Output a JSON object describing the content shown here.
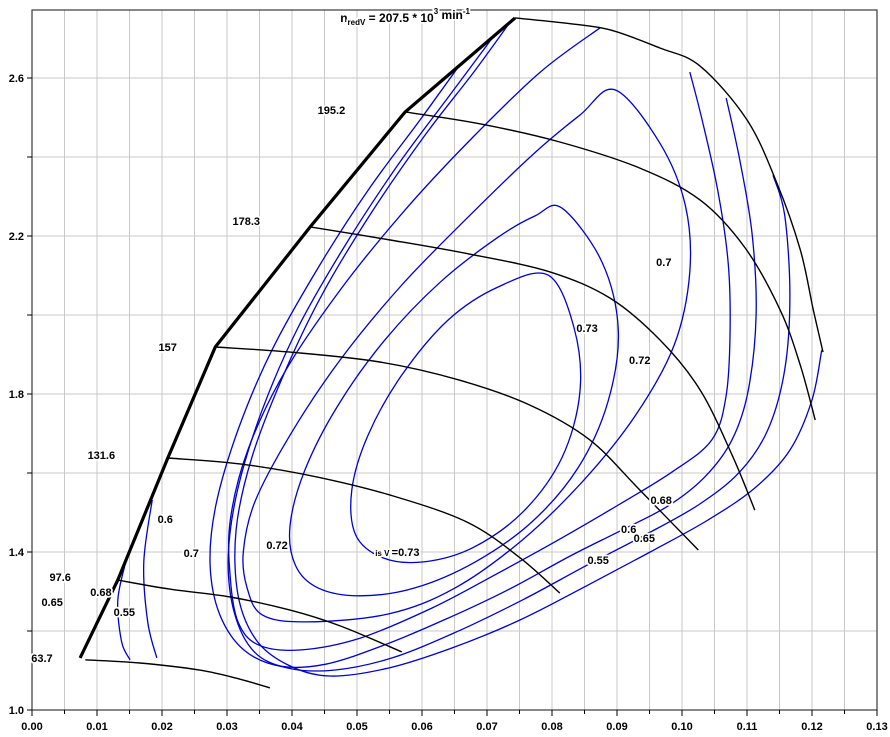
{
  "chart_data": {
    "type": "contour-map",
    "title": {
      "var": "n",
      "var_sub": "redV",
      "equals": " = ",
      "value": "207.5",
      "times": " * ",
      "base": "10",
      "exponent": "3",
      "unit": " min",
      "unit_exponent": "-1",
      "plain": "n_redV = 207.5 * 10^3 min^-1",
      "pos": [
        0.0574,
        2.752
      ]
    },
    "colors": {
      "speed_line": "#000000",
      "contour": "#0000d0",
      "grid": "#c9c9c9",
      "border": "#3a3a3a",
      "label": "#000000"
    },
    "x_axis": {
      "min": 0.0,
      "max": 0.13,
      "minor_step": 0.005,
      "major_step": 0.01,
      "tick_labels": [
        "0.00",
        "0.01",
        "0.02",
        "0.03",
        "0.04",
        "0.05",
        "0.06",
        "0.07",
        "0.08",
        "0.09",
        "0.10",
        "0.11",
        "0.12",
        "0.13"
      ]
    },
    "y_axis": {
      "min": 1.0,
      "max": 2.772,
      "minor_step": 0.2,
      "major_step": 0.4,
      "tick_labels": [
        "1.0",
        "1.4",
        "1.8",
        "2.2",
        "2.6"
      ],
      "tick_values": [
        1.0,
        1.4,
        1.8,
        2.2,
        2.6
      ]
    },
    "grid": true,
    "surge_line": {
      "points": [
        [
          0.0074,
          1.132
        ],
        [
          0.0132,
          1.329
        ],
        [
          0.0209,
          1.638
        ],
        [
          0.0282,
          1.919
        ],
        [
          0.0428,
          2.223
        ],
        [
          0.0574,
          2.514
        ],
        [
          0.0743,
          2.752
        ]
      ]
    },
    "speed_lines": [
      {
        "label": "63.7",
        "label_pos": [
          0.0038,
          1.132
        ],
        "points": [
          [
            0.0082,
            1.127
          ],
          [
            0.0166,
            1.119
          ],
          [
            0.0258,
            1.101
          ],
          [
            0.032,
            1.078
          ],
          [
            0.0366,
            1.056
          ]
        ]
      },
      {
        "label": "97.6",
        "label_pos": [
          0.0066,
          1.337
        ],
        "points": [
          [
            0.0132,
            1.329
          ],
          [
            0.0212,
            1.306
          ],
          [
            0.0305,
            1.286
          ],
          [
            0.0397,
            1.253
          ],
          [
            0.0474,
            1.213
          ],
          [
            0.0569,
            1.147
          ]
        ]
      },
      {
        "label": "131.6",
        "label_pos": [
          0.0134,
          1.646
        ],
        "points": [
          [
            0.0209,
            1.638
          ],
          [
            0.032,
            1.623
          ],
          [
            0.0438,
            1.59
          ],
          [
            0.0551,
            1.544
          ],
          [
            0.0669,
            1.476
          ],
          [
            0.0751,
            1.385
          ],
          [
            0.0812,
            1.296
          ]
        ]
      },
      {
        "label": "157",
        "label_pos": [
          0.0229,
          1.919
        ],
        "points": [
          [
            0.0282,
            1.919
          ],
          [
            0.0397,
            1.906
          ],
          [
            0.0535,
            1.881
          ],
          [
            0.0658,
            1.835
          ],
          [
            0.0766,
            1.772
          ],
          [
            0.0858,
            1.684
          ],
          [
            0.0935,
            1.557
          ],
          [
            0.1025,
            1.405
          ]
        ]
      },
      {
        "label": "178.3",
        "label_pos": [
          0.0357,
          2.238
        ],
        "points": [
          [
            0.0428,
            2.223
          ],
          [
            0.0551,
            2.19
          ],
          [
            0.0674,
            2.154
          ],
          [
            0.0797,
            2.109
          ],
          [
            0.0889,
            2.043
          ],
          [
            0.0966,
            1.937
          ],
          [
            0.1028,
            1.81
          ],
          [
            0.1077,
            1.646
          ],
          [
            0.1112,
            1.506
          ]
        ]
      },
      {
        "label": "195.2",
        "label_pos": [
          0.0488,
          2.519
        ],
        "points": [
          [
            0.0574,
            2.514
          ],
          [
            0.0689,
            2.484
          ],
          [
            0.0812,
            2.438
          ],
          [
            0.0935,
            2.372
          ],
          [
            0.1028,
            2.291
          ],
          [
            0.1097,
            2.17
          ],
          [
            0.1151,
            2.013
          ],
          [
            0.1182,
            1.873
          ],
          [
            0.1205,
            1.734
          ]
        ]
      },
      {
        "label": "207.5",
        "label_pos": null,
        "points": [
          [
            0.0743,
            2.752
          ],
          [
            0.082,
            2.739
          ],
          [
            0.0889,
            2.722
          ],
          [
            0.0966,
            2.676
          ],
          [
            0.1028,
            2.63
          ],
          [
            0.11,
            2.494
          ],
          [
            0.1146,
            2.334
          ],
          [
            0.1182,
            2.165
          ],
          [
            0.1202,
            2.013
          ],
          [
            0.1217,
            1.906
          ]
        ]
      }
    ],
    "efficiency_contours": [
      {
        "value": "0.73",
        "closed": true,
        "points": [
          [
            0.0794,
            2.101
          ],
          [
            0.0834,
            1.967
          ],
          [
            0.0843,
            1.805
          ],
          [
            0.0815,
            1.638
          ],
          [
            0.0755,
            1.501
          ],
          [
            0.0677,
            1.41
          ],
          [
            0.0603,
            1.375
          ],
          [
            0.054,
            1.385
          ],
          [
            0.0498,
            1.443
          ],
          [
            0.0492,
            1.557
          ],
          [
            0.0517,
            1.696
          ],
          [
            0.0569,
            1.848
          ],
          [
            0.064,
            1.987
          ],
          [
            0.0717,
            2.071
          ]
        ]
      },
      {
        "value": "0.72",
        "closed": true,
        "points": [
          [
            0.0815,
            2.271
          ],
          [
            0.0877,
            2.134
          ],
          [
            0.0902,
            1.962
          ],
          [
            0.0886,
            1.78
          ],
          [
            0.084,
            1.613
          ],
          [
            0.0769,
            1.476
          ],
          [
            0.0682,
            1.375
          ],
          [
            0.0589,
            1.309
          ],
          [
            0.0505,
            1.289
          ],
          [
            0.044,
            1.309
          ],
          [
            0.0405,
            1.367
          ],
          [
            0.0397,
            1.468
          ],
          [
            0.042,
            1.608
          ],
          [
            0.0471,
            1.772
          ],
          [
            0.0543,
            1.937
          ],
          [
            0.0628,
            2.083
          ],
          [
            0.0717,
            2.197
          ],
          [
            0.0774,
            2.251
          ]
        ]
      },
      {
        "value": "0.7",
        "closed": true,
        "points": [
          [
            0.0897,
            2.57
          ],
          [
            0.0966,
            2.435
          ],
          [
            0.1005,
            2.278
          ],
          [
            0.1012,
            2.109
          ],
          [
            0.0988,
            1.924
          ],
          [
            0.0929,
            1.747
          ],
          [
            0.0849,
            1.582
          ],
          [
            0.0754,
            1.43
          ],
          [
            0.0651,
            1.309
          ],
          [
            0.0548,
            1.243
          ],
          [
            0.042,
            1.223
          ],
          [
            0.0354,
            1.241
          ],
          [
            0.0331,
            1.309
          ],
          [
            0.0325,
            1.4
          ],
          [
            0.0343,
            1.527
          ],
          [
            0.0397,
            1.696
          ],
          [
            0.0474,
            1.886
          ],
          [
            0.0569,
            2.076
          ],
          [
            0.0674,
            2.253
          ],
          [
            0.0775,
            2.413
          ],
          [
            0.0843,
            2.506
          ]
        ]
      },
      {
        "value": "0.68",
        "closed": false,
        "points": [
          [
            0.0874,
            2.727
          ],
          [
            0.0782,
            2.615
          ],
          [
            0.0677,
            2.448
          ],
          [
            0.0574,
            2.266
          ],
          [
            0.0474,
            2.063
          ],
          [
            0.0389,
            1.856
          ],
          [
            0.0332,
            1.658
          ],
          [
            0.0305,
            1.481
          ],
          [
            0.0305,
            1.334
          ],
          [
            0.0317,
            1.223
          ],
          [
            0.0348,
            1.165
          ],
          [
            0.0412,
            1.152
          ],
          [
            0.0505,
            1.182
          ],
          [
            0.0615,
            1.258
          ],
          [
            0.0712,
            1.342
          ],
          [
            0.0809,
            1.43
          ],
          [
            0.0902,
            1.519
          ],
          [
            0.0985,
            1.603
          ],
          [
            0.1046,
            1.684
          ],
          [
            0.1068,
            1.797
          ],
          [
            0.1074,
            1.962
          ],
          [
            0.1071,
            2.134
          ],
          [
            0.1055,
            2.316
          ],
          [
            0.1031,
            2.494
          ],
          [
            0.1012,
            2.615
          ]
        ]
      },
      {
        "value": "0.65",
        "closed": false,
        "points": [
          [
            0.0658,
            2.633
          ],
          [
            0.0597,
            2.494
          ],
          [
            0.0517,
            2.316
          ],
          [
            0.044,
            2.119
          ],
          [
            0.0369,
            1.911
          ],
          [
            0.0317,
            1.709
          ],
          [
            0.0283,
            1.519
          ],
          [
            0.0274,
            1.367
          ],
          [
            0.0289,
            1.241
          ],
          [
            0.0326,
            1.152
          ],
          [
            0.0382,
            1.111
          ],
          [
            0.0452,
            1.116
          ],
          [
            0.0538,
            1.162
          ],
          [
            0.0634,
            1.228
          ],
          [
            0.0732,
            1.304
          ],
          [
            0.0828,
            1.39
          ],
          [
            0.0908,
            1.456
          ],
          [
            0.0978,
            1.516
          ],
          [
            0.1035,
            1.59
          ],
          [
            0.1077,
            1.684
          ],
          [
            0.1102,
            1.81
          ],
          [
            0.1114,
            2.0
          ],
          [
            0.1108,
            2.203
          ],
          [
            0.1089,
            2.392
          ],
          [
            0.1068,
            2.549
          ]
        ]
      },
      {
        "value": "0.6",
        "closed": false,
        "points": [
          [
            0.0708,
            2.701
          ],
          [
            0.0643,
            2.557
          ],
          [
            0.0563,
            2.38
          ],
          [
            0.0482,
            2.177
          ],
          [
            0.0409,
            1.967
          ],
          [
            0.0354,
            1.759
          ],
          [
            0.0317,
            1.562
          ],
          [
            0.0302,
            1.392
          ],
          [
            0.0311,
            1.248
          ],
          [
            0.0342,
            1.147
          ],
          [
            0.0394,
            1.106
          ],
          [
            0.0465,
            1.101
          ],
          [
            0.0554,
            1.132
          ],
          [
            0.0652,
            1.197
          ],
          [
            0.0754,
            1.278
          ],
          [
            0.0852,
            1.365
          ],
          [
            0.0943,
            1.443
          ],
          [
            0.1025,
            1.519
          ],
          [
            0.1089,
            1.603
          ],
          [
            0.1132,
            1.709
          ],
          [
            0.1158,
            1.861
          ],
          [
            0.1166,
            2.051
          ],
          [
            0.1158,
            2.253
          ],
          [
            0.114,
            2.354
          ]
        ]
      },
      {
        "value": "0.55",
        "closed": false,
        "points": [
          [
            0.0738,
            2.747
          ],
          [
            0.0682,
            2.62
          ],
          [
            0.0605,
            2.456
          ],
          [
            0.0523,
            2.261
          ],
          [
            0.0446,
            2.051
          ],
          [
            0.0385,
            1.841
          ],
          [
            0.0338,
            1.638
          ],
          [
            0.0314,
            1.456
          ],
          [
            0.0317,
            1.291
          ],
          [
            0.0345,
            1.177
          ],
          [
            0.0394,
            1.114
          ],
          [
            0.0458,
            1.086
          ],
          [
            0.0548,
            1.106
          ],
          [
            0.0646,
            1.157
          ],
          [
            0.0751,
            1.228
          ],
          [
            0.0855,
            1.316
          ],
          [
            0.0951,
            1.4
          ],
          [
            0.104,
            1.481
          ],
          [
            0.1112,
            1.562
          ],
          [
            0.1166,
            1.658
          ],
          [
            0.12,
            1.785
          ],
          [
            0.1215,
            1.911
          ]
        ]
      },
      {
        "value": "",
        "closed": false,
        "points": [
          [
            0.0145,
            1.38
          ],
          [
            0.0132,
            1.278
          ],
          [
            0.0138,
            1.172
          ],
          [
            0.0151,
            1.127
          ]
        ]
      },
      {
        "value": "",
        "closed": false,
        "points": [
          [
            0.0185,
            1.532
          ],
          [
            0.0172,
            1.375
          ],
          [
            0.0178,
            1.223
          ],
          [
            0.0192,
            1.132
          ]
        ]
      }
    ],
    "efficiency_labels": [
      {
        "text": "0.65",
        "pos": [
          0.0031,
          1.273
        ]
      },
      {
        "text": "0.68",
        "pos": [
          0.0106,
          1.299
        ]
      },
      {
        "text": "0.55",
        "pos": [
          0.0142,
          1.248
        ]
      },
      {
        "text": "0.6",
        "pos": [
          0.0205,
          1.484
        ]
      },
      {
        "text": "0.7",
        "pos": [
          0.0245,
          1.397
        ]
      },
      {
        "text": "0.72",
        "pos": [
          0.0377,
          1.418
        ]
      },
      {
        "text": "0.73",
        "pos": [
          0.0854,
          1.967
        ]
      },
      {
        "text": "0.72",
        "pos": [
          0.0935,
          1.886
        ]
      },
      {
        "text": "0.7",
        "pos": [
          0.0972,
          2.134
        ]
      },
      {
        "text": "0.68",
        "pos": [
          0.0968,
          1.532
        ]
      },
      {
        "text": "0.6",
        "pos": [
          0.0918,
          1.458
        ]
      },
      {
        "text": "0.65",
        "pos": [
          0.0942,
          1.435
        ]
      },
      {
        "text": "0.55",
        "pos": [
          0.0871,
          1.38
        ]
      }
    ],
    "special_label": {
      "prefix": "is V ",
      "main": "=0.73",
      "pos": [
        0.0528,
        1.4
      ]
    }
  }
}
